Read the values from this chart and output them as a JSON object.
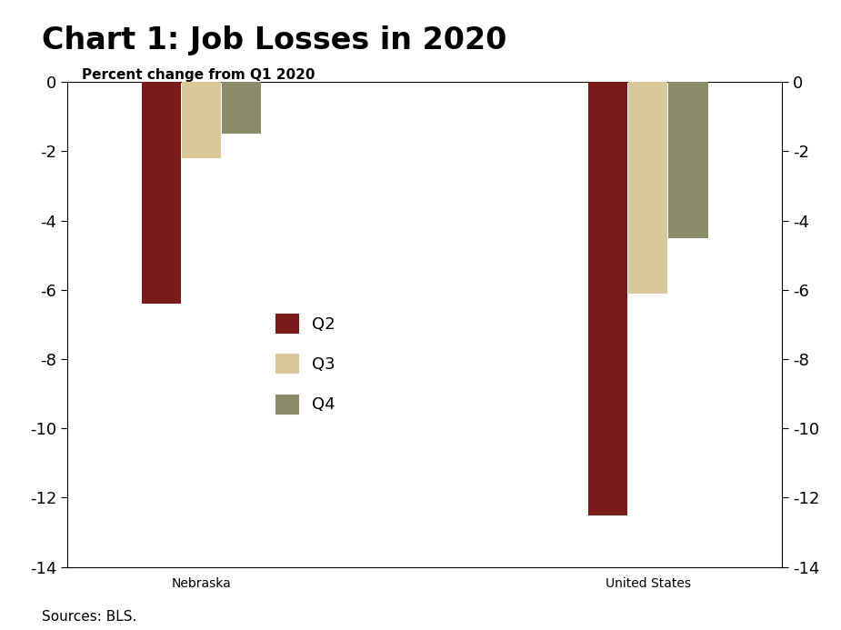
{
  "title": "Chart 1: Job Losses in 2020",
  "ylabel": "Percent change from Q1 2020",
  "categories": [
    "Nebraska",
    "United States"
  ],
  "quarters": [
    "Q2",
    "Q3",
    "Q4"
  ],
  "values": {
    "Nebraska": [
      -6.4,
      -2.2,
      -1.5
    ],
    "United States": [
      -12.5,
      -6.1,
      -4.5
    ]
  },
  "colors": {
    "Q2": "#7B1A1A",
    "Q3": "#D9C99A",
    "Q4": "#8B8B6A"
  },
  "ylim": [
    -14,
    0
  ],
  "yticks": [
    0,
    -2,
    -4,
    -6,
    -8,
    -10,
    -12,
    -14
  ],
  "sources_text": "Sources: BLS.",
  "bar_width": 0.18,
  "background_color": "#FFFFFF",
  "title_fontsize": 24,
  "tick_fontsize": 13,
  "legend_fontsize": 13,
  "sources_fontsize": 11,
  "ylabel_fontsize": 11,
  "cat_label_fontsize": 14
}
